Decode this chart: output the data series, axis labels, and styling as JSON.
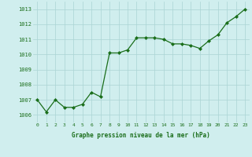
{
  "x": [
    0,
    1,
    2,
    3,
    4,
    5,
    6,
    7,
    8,
    9,
    10,
    11,
    12,
    13,
    14,
    15,
    16,
    17,
    18,
    19,
    20,
    21,
    22,
    23
  ],
  "y": [
    1007.0,
    1006.2,
    1007.0,
    1006.5,
    1006.5,
    1006.7,
    1007.5,
    1007.2,
    1010.1,
    1010.1,
    1010.3,
    1011.1,
    1011.1,
    1011.1,
    1011.0,
    1010.7,
    1010.7,
    1010.6,
    1010.4,
    1010.9,
    1011.3,
    1012.1,
    1012.5,
    1013.0
  ],
  "line_color": "#1a6e1a",
  "marker_color": "#1a6e1a",
  "bg_color": "#d0eeee",
  "grid_color": "#aad4d4",
  "xlabel": "Graphe pression niveau de la mer (hPa)",
  "xlabel_color": "#1a6e1a",
  "tick_color": "#1a6e1a",
  "ylim_min": 1005.5,
  "ylim_max": 1013.5,
  "yticks": [
    1006,
    1007,
    1008,
    1009,
    1010,
    1011,
    1012,
    1013
  ],
  "xticks": [
    0,
    1,
    2,
    3,
    4,
    5,
    6,
    7,
    8,
    9,
    10,
    11,
    12,
    13,
    14,
    15,
    16,
    17,
    18,
    19,
    20,
    21,
    22,
    23
  ]
}
